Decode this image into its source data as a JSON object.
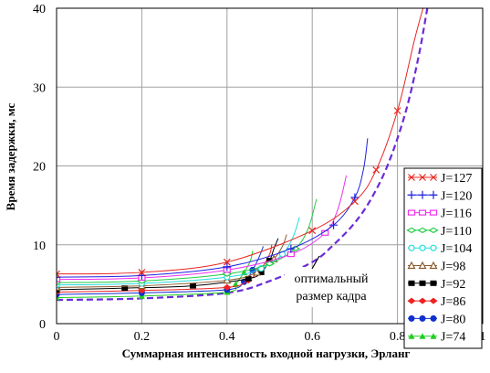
{
  "chart_data": {
    "type": "line",
    "xlabel": "Суммарная интенсивность входной нагрузки, Эрланг",
    "ylabel": "Время задержки, мс",
    "xlim": [
      0,
      1
    ],
    "ylim": [
      0,
      40
    ],
    "xticks": [
      0,
      0.2,
      0.4,
      0.6,
      0.8,
      1
    ],
    "xtick_labels": [
      "0",
      "0.2",
      "0.4",
      "0.6",
      "0.8",
      "1"
    ],
    "yticks": [
      0,
      10,
      20,
      30,
      40
    ],
    "ytick_labels": [
      "0",
      "10",
      "20",
      "30",
      "40"
    ],
    "grid": true,
    "legend_position": "right",
    "annotation": [
      "оптимальный",
      "размер кадра"
    ],
    "series": [
      {
        "name": "J=127",
        "color": "#e8261f",
        "marker": "x-cross",
        "x": [
          0,
          0.2,
          0.4,
          0.6,
          0.7,
          0.75,
          0.8,
          0.84,
          0.86
        ],
        "y": [
          6.3,
          6.5,
          7.8,
          11.8,
          15.5,
          19.5,
          27,
          36,
          40
        ]
      },
      {
        "name": "J=120",
        "color": "#2020e0",
        "marker": "plus",
        "x": [
          0,
          0.2,
          0.4,
          0.55,
          0.65,
          0.7,
          0.72,
          0.73
        ],
        "y": [
          5.9,
          6.1,
          7.2,
          9.5,
          12.5,
          16,
          19.5,
          23.5
        ]
      },
      {
        "name": "J=116",
        "color": "#ee30ee",
        "marker": "square",
        "x": [
          0,
          0.2,
          0.4,
          0.55,
          0.63,
          0.66,
          0.68
        ],
        "y": [
          5.6,
          5.8,
          6.8,
          8.8,
          11.5,
          14.5,
          18.8
        ]
      },
      {
        "name": "J=110",
        "color": "#22cc44",
        "marker": "diamond",
        "x": [
          0,
          0.2,
          0.4,
          0.5,
          0.56,
          0.59,
          0.61
        ],
        "y": [
          5.2,
          5.4,
          6.3,
          7.6,
          9.5,
          12,
          15.8
        ]
      },
      {
        "name": "J=104",
        "color": "#22dddd",
        "marker": "circle",
        "x": [
          0,
          0.2,
          0.4,
          0.48,
          0.53,
          0.555,
          0.57
        ],
        "y": [
          4.9,
          5.1,
          5.9,
          7.0,
          8.8,
          11,
          13.5
        ]
      },
      {
        "name": "J=98",
        "color": "#8b5a2b",
        "marker": "triangle-open",
        "x": [
          0,
          0.2,
          0.4,
          0.47,
          0.51,
          0.53,
          0.54
        ],
        "y": [
          4.6,
          4.8,
          5.5,
          6.5,
          8.2,
          9.8,
          11.3
        ]
      },
      {
        "name": "J=92",
        "color": "#000000",
        "marker": "square-filled",
        "x": [
          0,
          0.16,
          0.32,
          0.45,
          0.48,
          0.5,
          0.51,
          0.52
        ],
        "y": [
          4.3,
          4.5,
          4.8,
          5.7,
          6.5,
          8,
          9.5,
          10.8
        ]
      },
      {
        "name": "J=86",
        "color": "#ee2222",
        "marker": "diamond-filled",
        "x": [
          0,
          0.2,
          0.4,
          0.45,
          0.48,
          0.5,
          0.505
        ],
        "y": [
          4.0,
          4.2,
          4.6,
          5.5,
          7,
          8.8,
          10
        ]
      },
      {
        "name": "J=80",
        "color": "#1030d0",
        "marker": "circle-filled",
        "x": [
          0,
          0.2,
          0.4,
          0.44,
          0.46,
          0.475,
          0.485
        ],
        "y": [
          3.7,
          3.9,
          4.3,
          5.3,
          6.8,
          8.4,
          9.8
        ]
      },
      {
        "name": "J=74",
        "color": "#22cc22",
        "marker": "triangle-filled",
        "x": [
          0,
          0.2,
          0.4,
          0.42,
          0.44,
          0.455,
          0.46
        ],
        "y": [
          3.3,
          3.5,
          4.0,
          5.0,
          6.5,
          8,
          9.2
        ]
      },
      {
        "name": "",
        "color": "#6a2bd9",
        "marker": "none",
        "dashed": true,
        "x": [
          0,
          0.2,
          0.4,
          0.5,
          0.6,
          0.65,
          0.7,
          0.74,
          0.78,
          0.82,
          0.85,
          0.87
        ],
        "y": [
          3.0,
          3.2,
          3.9,
          5.4,
          7.8,
          10,
          12.8,
          16,
          20.5,
          27,
          34,
          40
        ]
      }
    ]
  }
}
